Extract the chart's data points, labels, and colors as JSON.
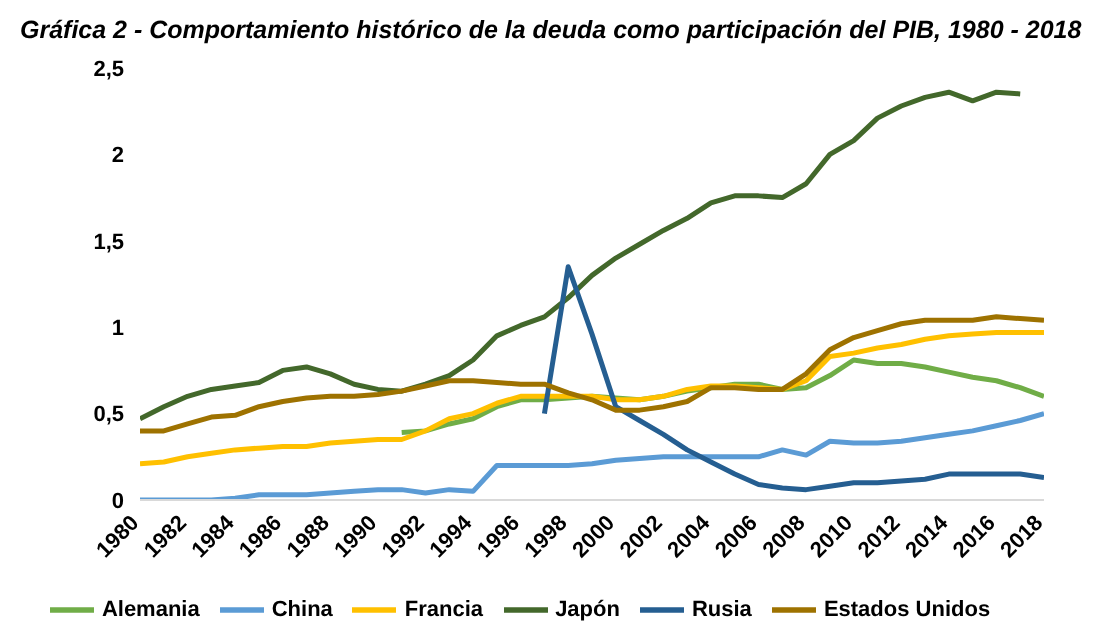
{
  "chart_data": {
    "type": "line",
    "title": "Gráfica 2 - Comportamiento histórico de la deuda como participación del PIB, 1980 - 2018",
    "categories": [
      "1980",
      null,
      "1982",
      null,
      "1984",
      null,
      "1986",
      null,
      "1988",
      null,
      "1990",
      null,
      "1992",
      null,
      "1994",
      null,
      "1996",
      null,
      "1998",
      null,
      "2000",
      null,
      "2002",
      null,
      "2004",
      null,
      "2006",
      null,
      "2008",
      null,
      "2010",
      null,
      "2012",
      null,
      "2014",
      null,
      "2016",
      null,
      "2018"
    ],
    "series": [
      {
        "name": "Alemania",
        "color": "#70ad47",
        "values": [
          null,
          null,
          null,
          null,
          null,
          null,
          null,
          null,
          null,
          null,
          null,
          0.39,
          0.4,
          0.44,
          0.47,
          0.54,
          0.58,
          0.58,
          0.59,
          0.6,
          0.59,
          0.58,
          0.6,
          0.63,
          0.65,
          0.67,
          0.67,
          0.64,
          0.65,
          0.72,
          0.81,
          0.79,
          0.79,
          0.77,
          0.74,
          0.71,
          0.69,
          0.65,
          0.6
        ]
      },
      {
        "name": "China",
        "color": "#5b9bd5",
        "values": [
          0,
          0,
          0,
          0,
          0.01,
          0.03,
          0.03,
          0.03,
          0.04,
          0.05,
          0.06,
          0.06,
          0.04,
          0.06,
          0.05,
          0.2,
          0.2,
          0.2,
          0.2,
          0.21,
          0.23,
          0.24,
          0.25,
          0.25,
          0.25,
          0.25,
          0.25,
          0.29,
          0.26,
          0.34,
          0.33,
          0.33,
          0.34,
          0.36,
          0.38,
          0.4,
          0.43,
          0.46,
          0.5
        ]
      },
      {
        "name": "Francia",
        "color": "#ffc000",
        "values": [
          0.21,
          0.22,
          0.25,
          0.27,
          0.29,
          0.3,
          0.31,
          0.31,
          0.33,
          0.34,
          0.35,
          0.35,
          0.4,
          0.47,
          0.5,
          0.56,
          0.6,
          0.6,
          0.6,
          0.6,
          0.58,
          0.58,
          0.6,
          0.64,
          0.66,
          0.66,
          0.65,
          0.64,
          0.69,
          0.83,
          0.85,
          0.88,
          0.9,
          0.93,
          0.95,
          0.96,
          0.97,
          0.97,
          0.97
        ]
      },
      {
        "name": "Japón",
        "color": "#43682b",
        "values": [
          0.47,
          0.54,
          0.6,
          0.64,
          0.66,
          0.68,
          0.75,
          0.77,
          0.73,
          0.67,
          0.64,
          0.63,
          0.67,
          0.72,
          0.81,
          0.95,
          1.01,
          1.06,
          1.17,
          1.3,
          1.4,
          1.48,
          1.56,
          1.63,
          1.72,
          1.76,
          1.76,
          1.75,
          1.83,
          2.0,
          2.08,
          2.21,
          2.28,
          2.33,
          2.36,
          2.31,
          2.36,
          2.35,
          null
        ]
      },
      {
        "name": "Rusia",
        "color": "#255e91",
        "values": [
          null,
          null,
          null,
          null,
          null,
          null,
          null,
          null,
          null,
          null,
          null,
          null,
          null,
          null,
          null,
          null,
          null,
          0.5,
          1.35,
          0.96,
          0.54,
          0.46,
          0.38,
          0.29,
          0.22,
          0.15,
          0.09,
          0.07,
          0.06,
          0.08,
          0.1,
          0.1,
          0.11,
          0.12,
          0.15,
          0.15,
          0.15,
          0.15,
          0.13
        ]
      },
      {
        "name": "Estados Unidos",
        "color": "#9e7200",
        "values": [
          0.4,
          0.4,
          0.44,
          0.48,
          0.49,
          0.54,
          0.57,
          0.59,
          0.6,
          0.6,
          0.61,
          0.63,
          0.66,
          0.69,
          0.69,
          0.68,
          0.67,
          0.67,
          0.62,
          0.58,
          0.52,
          0.52,
          0.54,
          0.57,
          0.65,
          0.65,
          0.64,
          0.64,
          0.73,
          0.87,
          0.94,
          0.98,
          1.02,
          1.04,
          1.04,
          1.04,
          1.06,
          1.05,
          1.04
        ]
      }
    ],
    "ylim": [
      0,
      2.5
    ],
    "yticks": [
      0,
      {
        "value": 0.5,
        "label": "0,5"
      },
      1,
      {
        "value": 1.5,
        "label": "1,5"
      },
      2,
      {
        "value": 2.5,
        "label": "2,5"
      }
    ],
    "grid": false,
    "legend": "bottom",
    "marker": "none",
    "line_style": "solid"
  }
}
